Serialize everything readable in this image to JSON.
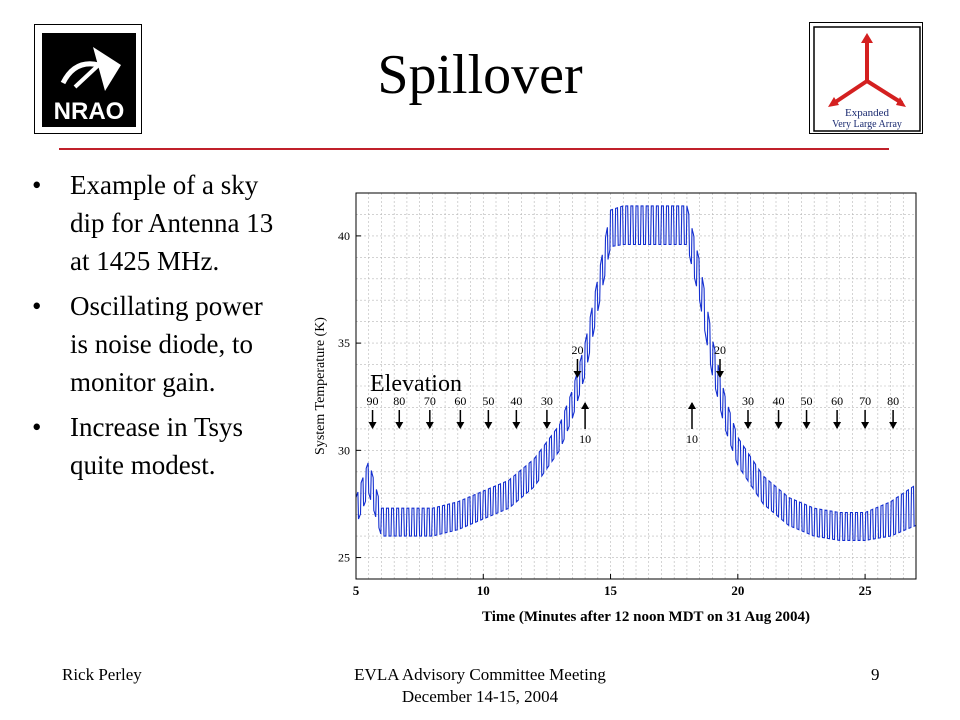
{
  "slide": {
    "title": "Spillover",
    "page_number": "9",
    "bullet_char": "•"
  },
  "bullets": [
    "Example of a sky dip for Antenna 13 at 1425 MHz.",
    "Oscillating power is noise diode, to monitor gain.",
    "Increase in Tsys quite modest."
  ],
  "footer": {
    "author": "Rick Perley",
    "meeting_line1": "EVLA Advisory Committee Meeting",
    "meeting_line2": "December 14-15, 2004"
  },
  "logos": {
    "left_text": "NRAO",
    "right_line1": "Expanded",
    "right_line2": "Very Large Array"
  },
  "colors": {
    "rule": "#c0202a",
    "series": "#1530d0",
    "logo_red": "#d42020"
  },
  "chart_data": {
    "type": "line",
    "xlabel": "Time (Minutes after 12 noon MDT on 31 Aug 2004)",
    "ylabel": "System Temperature (K)",
    "xlim": [
      5,
      27
    ],
    "ylim": [
      24,
      42
    ],
    "x_ticks": [
      5,
      10,
      15,
      20,
      25
    ],
    "y_ticks": [
      25,
      30,
      35,
      40
    ],
    "grid": true,
    "annotation_title": "Elevation",
    "series": [
      {
        "x": [
          5.0,
          5.5,
          6.0,
          7.0,
          8.0,
          9.0,
          10.0,
          11.0,
          12.0,
          13.0,
          13.5,
          14.0,
          14.5,
          15.0,
          15.5,
          18.0,
          18.5,
          19.0,
          19.5,
          20.0,
          21.0,
          22.0,
          23.0,
          24.0,
          25.0,
          26.0,
          27.0
        ],
        "y_low": [
          26.5,
          28.0,
          26.0,
          26.0,
          26.0,
          26.3,
          26.8,
          27.3,
          28.3,
          30.0,
          31.5,
          33.5,
          36.5,
          39.5,
          39.6,
          39.6,
          37.0,
          33.5,
          31.0,
          29.3,
          27.5,
          26.5,
          26.0,
          25.8,
          25.8,
          26.0,
          26.5
        ],
        "y_high": [
          27.8,
          29.5,
          27.3,
          27.3,
          27.3,
          27.6,
          28.1,
          28.6,
          29.6,
          31.2,
          32.8,
          35.0,
          38.0,
          41.2,
          41.4,
          41.4,
          38.8,
          35.2,
          32.5,
          30.6,
          28.8,
          27.8,
          27.3,
          27.1,
          27.1,
          27.6,
          28.4
        ]
      }
    ],
    "elevation_markers": [
      {
        "label": "90",
        "x": 5.65,
        "direction": "down"
      },
      {
        "label": "80",
        "x": 6.7,
        "direction": "down"
      },
      {
        "label": "70",
        "x": 7.9,
        "direction": "down"
      },
      {
        "label": "60",
        "x": 9.1,
        "direction": "down"
      },
      {
        "label": "50",
        "x": 10.2,
        "direction": "down"
      },
      {
        "label": "40",
        "x": 11.3,
        "direction": "down"
      },
      {
        "label": "30",
        "x": 12.5,
        "direction": "down"
      },
      {
        "label": "20",
        "x": 13.7,
        "direction": "down"
      },
      {
        "label": "10",
        "x": 14.0,
        "direction": "up"
      },
      {
        "label": "10",
        "x": 18.2,
        "direction": "up"
      },
      {
        "label": "20",
        "x": 19.3,
        "direction": "down"
      },
      {
        "label": "30",
        "x": 20.4,
        "direction": "down"
      },
      {
        "label": "40",
        "x": 21.6,
        "direction": "down"
      },
      {
        "label": "50",
        "x": 22.7,
        "direction": "down"
      },
      {
        "label": "60",
        "x": 23.9,
        "direction": "down"
      },
      {
        "label": "70",
        "x": 25.0,
        "direction": "down"
      },
      {
        "label": "80",
        "x": 26.1,
        "direction": "down"
      }
    ]
  }
}
